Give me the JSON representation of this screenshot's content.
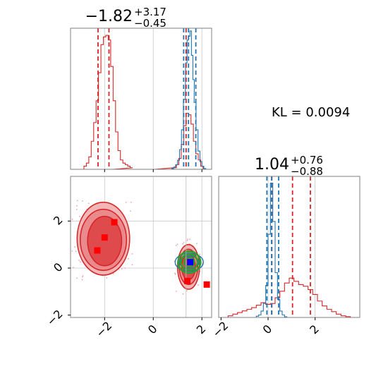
{
  "chart_data": {
    "type": "corner",
    "colors": {
      "red": "#d62728",
      "blue": "#1f77b4",
      "green": "#2ca02c",
      "square_blue": "#0000ff",
      "square_red": "#ff0000"
    },
    "kl_text": "KL = 0.0094",
    "param1": {
      "title_main": "−1.82",
      "title_sup": "+3.17",
      "title_sub": "−0.45",
      "xlim": [
        -3.4,
        2.4
      ],
      "xticks": [
        "−2",
        "0",
        "2"
      ],
      "red_quantiles": [
        -2.27,
        -1.82,
        1.35
      ],
      "blue_quantiles": [
        1.25,
        1.45,
        1.75
      ],
      "grid_x": [
        -2,
        0,
        2
      ],
      "red_hist_x": [
        -2.8,
        -2.7,
        -2.6,
        -2.5,
        -2.4,
        -2.3,
        -2.2,
        -2.1,
        -2.0,
        -1.9,
        -1.8,
        -1.7,
        -1.6,
        -1.5,
        -1.4,
        -1.3,
        -1.2,
        -1.1,
        -1.0,
        -0.9,
        -0.8,
        0.9,
        1.0,
        1.1,
        1.2,
        1.3,
        1.4,
        1.5,
        1.6,
        1.7,
        1.8,
        1.9,
        2.0
      ],
      "red_hist_y": [
        2,
        4,
        8,
        18,
        30,
        44,
        62,
        80,
        85,
        86,
        83,
        66,
        44,
        24,
        12,
        6,
        4,
        3,
        2,
        1,
        0,
        1,
        3,
        7,
        16,
        28,
        36,
        35,
        29,
        18,
        10,
        6,
        2
      ],
      "blue_hist_x": [
        0.8,
        0.88,
        0.96,
        1.04,
        1.12,
        1.2,
        1.28,
        1.36,
        1.42,
        1.48,
        1.54,
        1.6,
        1.66,
        1.72,
        1.8,
        1.88,
        1.96,
        2.04,
        2.12
      ],
      "blue_hist_y": [
        1,
        3,
        6,
        12,
        26,
        52,
        92,
        140,
        170,
        175,
        182,
        150,
        118,
        88,
        52,
        24,
        10,
        4,
        1
      ]
    },
    "param2": {
      "title_main": "1.04",
      "title_sup": "+0.76",
      "title_sub": "−0.88",
      "xlim": [
        -2.1,
        3.9
      ],
      "xticks": [
        "−2",
        "0",
        "2"
      ],
      "red_quantiles": [
        0.16,
        1.04,
        1.8
      ],
      "blue_quantiles": [
        -0.05,
        0.15,
        0.45
      ],
      "grid_x": [
        0,
        2
      ],
      "red_hist_x": [
        -1.6,
        -1.4,
        -1.2,
        -1.0,
        -0.8,
        -0.6,
        -0.4,
        -0.2,
        0.0,
        0.2,
        0.4,
        0.6,
        0.8,
        1.0,
        1.2,
        1.4,
        1.6,
        1.8,
        2.0,
        2.2,
        2.4,
        2.6,
        2.8,
        3.0,
        3.2,
        3.4
      ],
      "red_hist_y": [
        2,
        4,
        6,
        8,
        10,
        12,
        15,
        18,
        16,
        17,
        24,
        32,
        42,
        48,
        44,
        40,
        38,
        34,
        28,
        20,
        14,
        10,
        7,
        4,
        2,
        1
      ],
      "blue_hist_x": [
        -0.45,
        -0.35,
        -0.25,
        -0.15,
        -0.05,
        0.05,
        0.15,
        0.25,
        0.35,
        0.45,
        0.55,
        0.65,
        0.75
      ],
      "blue_hist_y": [
        2,
        4,
        10,
        22,
        50,
        130,
        210,
        150,
        70,
        28,
        10,
        4,
        1
      ]
    },
    "scatter": {
      "xlim": [
        -3.4,
        2.4
      ],
      "ylim": [
        -2.1,
        3.9
      ],
      "xticks": [
        "−2",
        "0",
        "2"
      ],
      "yticks": [
        "−2",
        "0",
        "2"
      ],
      "grid_x": [
        -2,
        0,
        2
      ],
      "grid_y": [
        0,
        2
      ],
      "red_quantile_lines": {
        "x": [
          1.35
        ],
        "y": [
          0.16
        ]
      },
      "blue_quantile_lines": {
        "x": [
          1.45
        ],
        "y": [
          0.15
        ]
      },
      "red_contours": [
        {
          "cx": -2.05,
          "cy": 1.25,
          "rx": 1.08,
          "ry": 1.55
        },
        {
          "cx": -2.05,
          "cy": 1.2,
          "rx": 0.95,
          "ry": 1.3
        },
        {
          "cx": -2.0,
          "cy": 1.15,
          "rx": 0.7,
          "ry": 1.05
        },
        {
          "cx": 1.45,
          "cy": 0.05,
          "rx": 0.45,
          "ry": 0.95
        },
        {
          "cx": 1.45,
          "cy": 0.05,
          "rx": 0.38,
          "ry": 0.75
        },
        {
          "cx": 1.45,
          "cy": 0.05,
          "rx": 0.28,
          "ry": 0.55
        }
      ],
      "blue_contours": [
        {
          "cx": 1.48,
          "cy": 0.25,
          "rx": 0.58,
          "ry": 0.38
        },
        {
          "cx": 1.48,
          "cy": 0.25,
          "rx": 0.4,
          "ry": 0.26
        }
      ],
      "green_contours": [
        {
          "cx": 1.48,
          "cy": 0.25,
          "rx": 0.46,
          "ry": 0.46
        },
        {
          "cx": 1.48,
          "cy": 0.25,
          "rx": 0.34,
          "ry": 0.34
        },
        {
          "cx": 1.48,
          "cy": 0.25,
          "rx": 0.2,
          "ry": 0.2
        }
      ],
      "red_squares": [
        [
          -2.0,
          1.3
        ],
        [
          -2.3,
          0.75
        ],
        [
          -1.6,
          1.95
        ],
        [
          1.4,
          -0.55
        ],
        [
          2.2,
          -0.7
        ]
      ],
      "blue_squares": [
        [
          1.52,
          0.25
        ]
      ]
    }
  }
}
